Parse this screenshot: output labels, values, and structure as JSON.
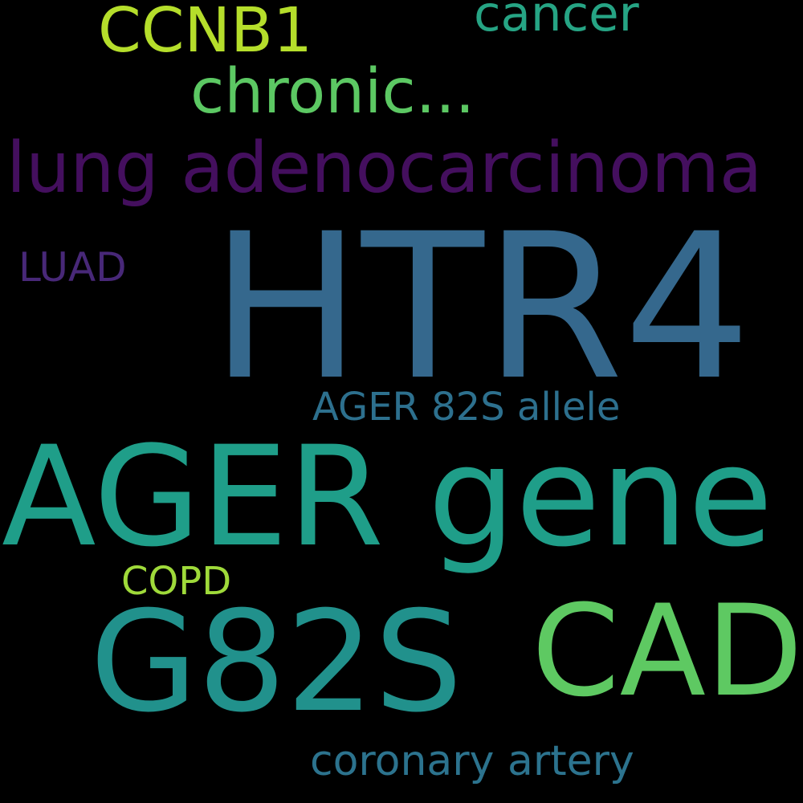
{
  "background_color": "#000000",
  "words": [
    {
      "id": "w-htr4",
      "name": "word-htr4",
      "text": "HTR4",
      "color": "#35688d"
    },
    {
      "id": "w-ager-gene",
      "name": "word-ager-gene",
      "text": "AGER gene",
      "color": "#1f9e89"
    },
    {
      "id": "w-g82s",
      "name": "word-g82s",
      "text": "G82S",
      "color": "#21918c"
    },
    {
      "id": "w-cad",
      "name": "word-cad",
      "text": "CAD",
      "color": "#5ec962"
    },
    {
      "id": "w-lungad",
      "name": "word-lung-adenocarcinoma",
      "text": "lung adenocarcinoma",
      "color": "#440f5e"
    },
    {
      "id": "w-chronic",
      "name": "word-chronic",
      "text": "chronic...",
      "color": "#5cc863"
    },
    {
      "id": "w-ccnb1",
      "name": "word-ccnb1",
      "text": "CCNB1",
      "color": "#b5de2b"
    },
    {
      "id": "w-cancer",
      "name": "word-cancer",
      "text": "cancer",
      "color": "#26a484"
    },
    {
      "id": "w-ager82s",
      "name": "word-ager-82s-allele",
      "text": "AGER 82S allele",
      "color": "#2d708e"
    },
    {
      "id": "w-coronary",
      "name": "word-coronary-artery",
      "text": "coronary artery",
      "color": "#2c738e"
    },
    {
      "id": "w-luad",
      "name": "word-luad",
      "text": "LUAD",
      "color": "#482878"
    },
    {
      "id": "w-copd",
      "name": "word-copd",
      "text": "COPD",
      "color": "#9fda3a"
    }
  ]
}
